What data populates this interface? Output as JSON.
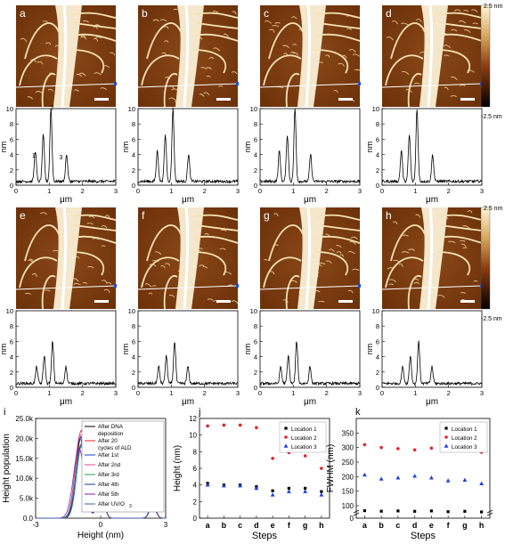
{
  "afm_panels": [
    {
      "label": "a"
    },
    {
      "label": "b"
    },
    {
      "label": "c"
    },
    {
      "label": "d"
    },
    {
      "label": "e"
    },
    {
      "label": "f"
    },
    {
      "label": "g"
    },
    {
      "label": "h"
    }
  ],
  "colorbar": {
    "max_label": "2.5 nm",
    "min_label": "-2.5 nm"
  },
  "profile_axes": {
    "ylabel": "nm",
    "xlabel": "μm",
    "yticks": [
      "0",
      "2",
      "4",
      "6",
      "8",
      "10"
    ],
    "xticks": [
      "0",
      "1",
      "2",
      "3"
    ]
  },
  "peak_labels": {
    "p1": "1",
    "p2": "2",
    "p3": "3"
  },
  "chart_data": [
    {
      "type": "line",
      "panel": "i",
      "xlabel": "Height (nm)",
      "ylabel": "Height population",
      "xlim": [
        -3,
        3
      ],
      "ylim": [
        0,
        25000
      ],
      "xticks": [
        "-3",
        "0",
        "3"
      ],
      "yticks": [
        "0.0",
        "5.0k",
        "10.0k",
        "15.0k",
        "20.0k",
        "25.0k"
      ],
      "legend": [
        {
          "name": "After DNA deposition",
          "color": "#000000"
        },
        {
          "name": "After 20 cycles of ALD",
          "color": "#e8202a"
        },
        {
          "name": "After 1st",
          "color": "#1f3fbf"
        },
        {
          "name": "After 2nd",
          "color": "#e0409a"
        },
        {
          "name": "After 3rd",
          "color": "#1aa05a"
        },
        {
          "name": "After 4th",
          "color": "#153a8c"
        },
        {
          "name": "After 5th",
          "color": "#7a1fa0"
        },
        {
          "name": "After UVO",
          "color": "#3a5fa8"
        }
      ],
      "series": [
        {
          "name": "After DNA deposition",
          "peak": -0.9,
          "height": 20500,
          "width": 0.32
        },
        {
          "name": "After 20 cycles of ALD",
          "peak": -0.9,
          "height": 22000,
          "width": 0.3
        },
        {
          "name": "After 1st",
          "peak": -0.95,
          "height": 20000,
          "width": 0.33
        },
        {
          "name": "After 2nd",
          "peak": -0.95,
          "height": 21000,
          "width": 0.32
        },
        {
          "name": "After 3rd",
          "peak": -0.85,
          "height": 19000,
          "width": 0.34
        },
        {
          "name": "After 4th",
          "peak": -0.9,
          "height": 18500,
          "width": 0.34
        },
        {
          "name": "After 5th",
          "peak": -1.0,
          "height": 17500,
          "width": 0.36
        },
        {
          "name": "After UVO",
          "peak": -0.9,
          "height": 18000,
          "width": 0.35
        }
      ]
    },
    {
      "type": "scatter",
      "panel": "j",
      "xlabel": "Steps",
      "ylabel": "Height (nm)",
      "categories": [
        "a",
        "b",
        "c",
        "d",
        "e",
        "f",
        "g",
        "h"
      ],
      "ylim": [
        0,
        12
      ],
      "yticks": [
        "0",
        "2",
        "4",
        "6",
        "8",
        "10",
        "12"
      ],
      "series": [
        {
          "name": "Location 1",
          "color": "#000000",
          "marker": "square",
          "values": [
            4.2,
            4.0,
            4.0,
            3.8,
            3.3,
            3.6,
            3.6,
            3.2
          ]
        },
        {
          "name": "Location 2",
          "color": "#e8202a",
          "marker": "circle",
          "values": [
            11.1,
            11.2,
            11.2,
            10.9,
            7.2,
            7.9,
            7.5,
            6.0
          ]
        },
        {
          "name": "Location 3",
          "color": "#1f3fe0",
          "marker": "triangle",
          "values": [
            4.0,
            3.9,
            3.9,
            3.6,
            2.8,
            3.2,
            3.2,
            2.8
          ]
        }
      ]
    },
    {
      "type": "scatter",
      "panel": "k",
      "xlabel": "Steps",
      "ylabel": "FWHM (nm)",
      "categories": [
        "a",
        "b",
        "c",
        "d",
        "e",
        "f",
        "g",
        "h"
      ],
      "ylim": [
        0,
        400
      ],
      "yticks": [
        "0",
        "100",
        "150",
        "200",
        "250",
        "300",
        "350"
      ],
      "series": [
        {
          "name": "Location 1",
          "color": "#000000",
          "marker": "square",
          "values": [
            60,
            56,
            58,
            55,
            58,
            52,
            55,
            50
          ]
        },
        {
          "name": "Location 2",
          "color": "#e8202a",
          "marker": "circle",
          "values": [
            310,
            300,
            296,
            292,
            298,
            292,
            294,
            284
          ]
        },
        {
          "name": "Location 3",
          "color": "#1f3fe0",
          "marker": "triangle",
          "values": [
            206,
            192,
            196,
            202,
            196,
            186,
            188,
            176
          ]
        }
      ]
    }
  ]
}
